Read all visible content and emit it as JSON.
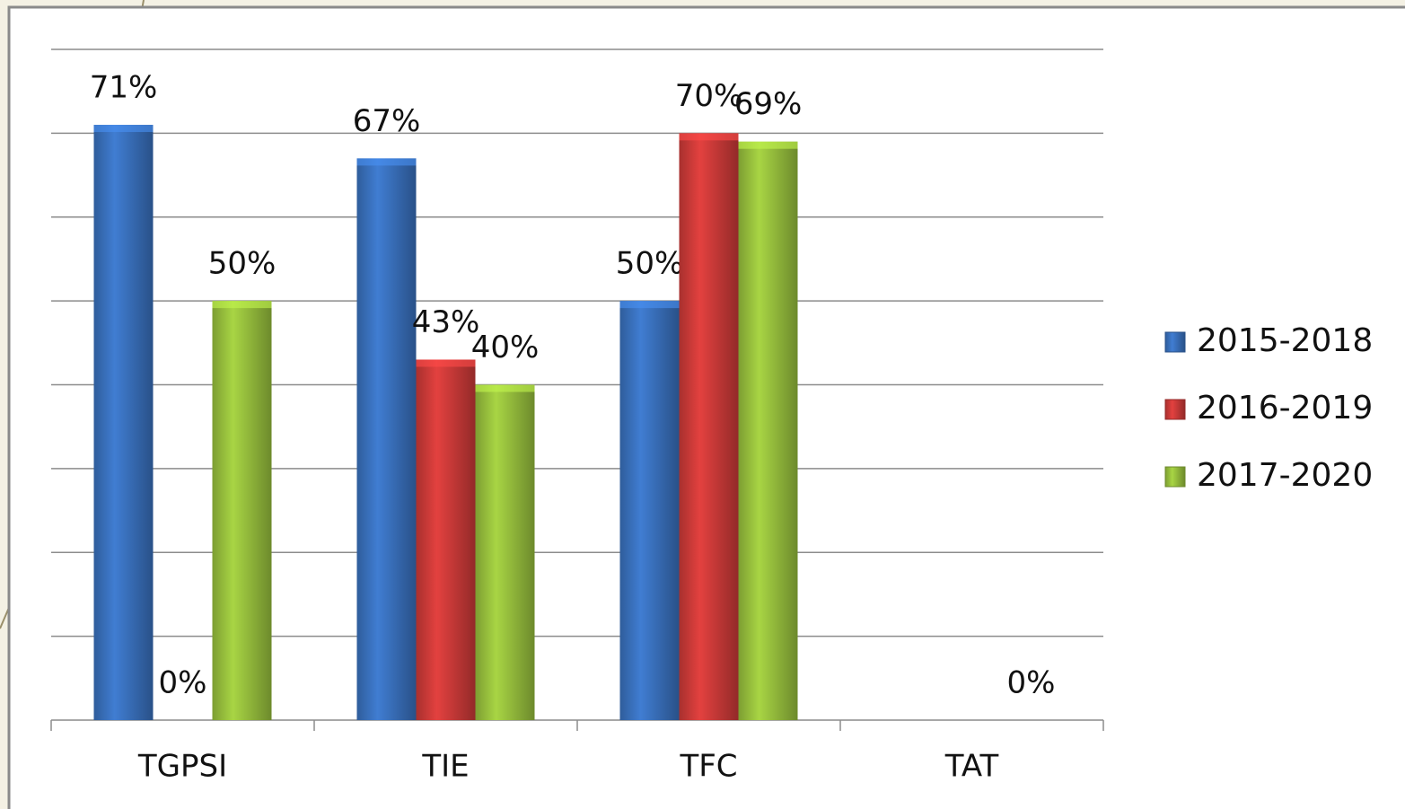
{
  "chart_data": {
    "type": "bar",
    "categories": [
      "TGPSI",
      "TIE",
      "TFC",
      "TAT"
    ],
    "series": [
      {
        "name": "2015-2018",
        "color": "#3b74c2",
        "values": [
          71,
          67,
          50,
          null
        ],
        "value_labels": [
          "71%",
          "67%",
          "50%",
          null
        ]
      },
      {
        "name": "2016-2019",
        "color": "#d23c3a",
        "values": [
          0,
          43,
          70,
          null
        ],
        "value_labels": [
          "0%",
          "43%",
          "70%",
          null
        ]
      },
      {
        "name": "2017-2020",
        "color": "#9cc53f",
        "values": [
          50,
          40,
          69,
          0
        ],
        "value_labels": [
          "50%",
          "40%",
          "69%",
          "0%"
        ]
      }
    ],
    "ylim": [
      0,
      80
    ],
    "yticks": [
      0,
      10,
      20,
      30,
      40,
      50,
      60,
      70,
      80
    ],
    "grid": true,
    "legend": "right"
  }
}
